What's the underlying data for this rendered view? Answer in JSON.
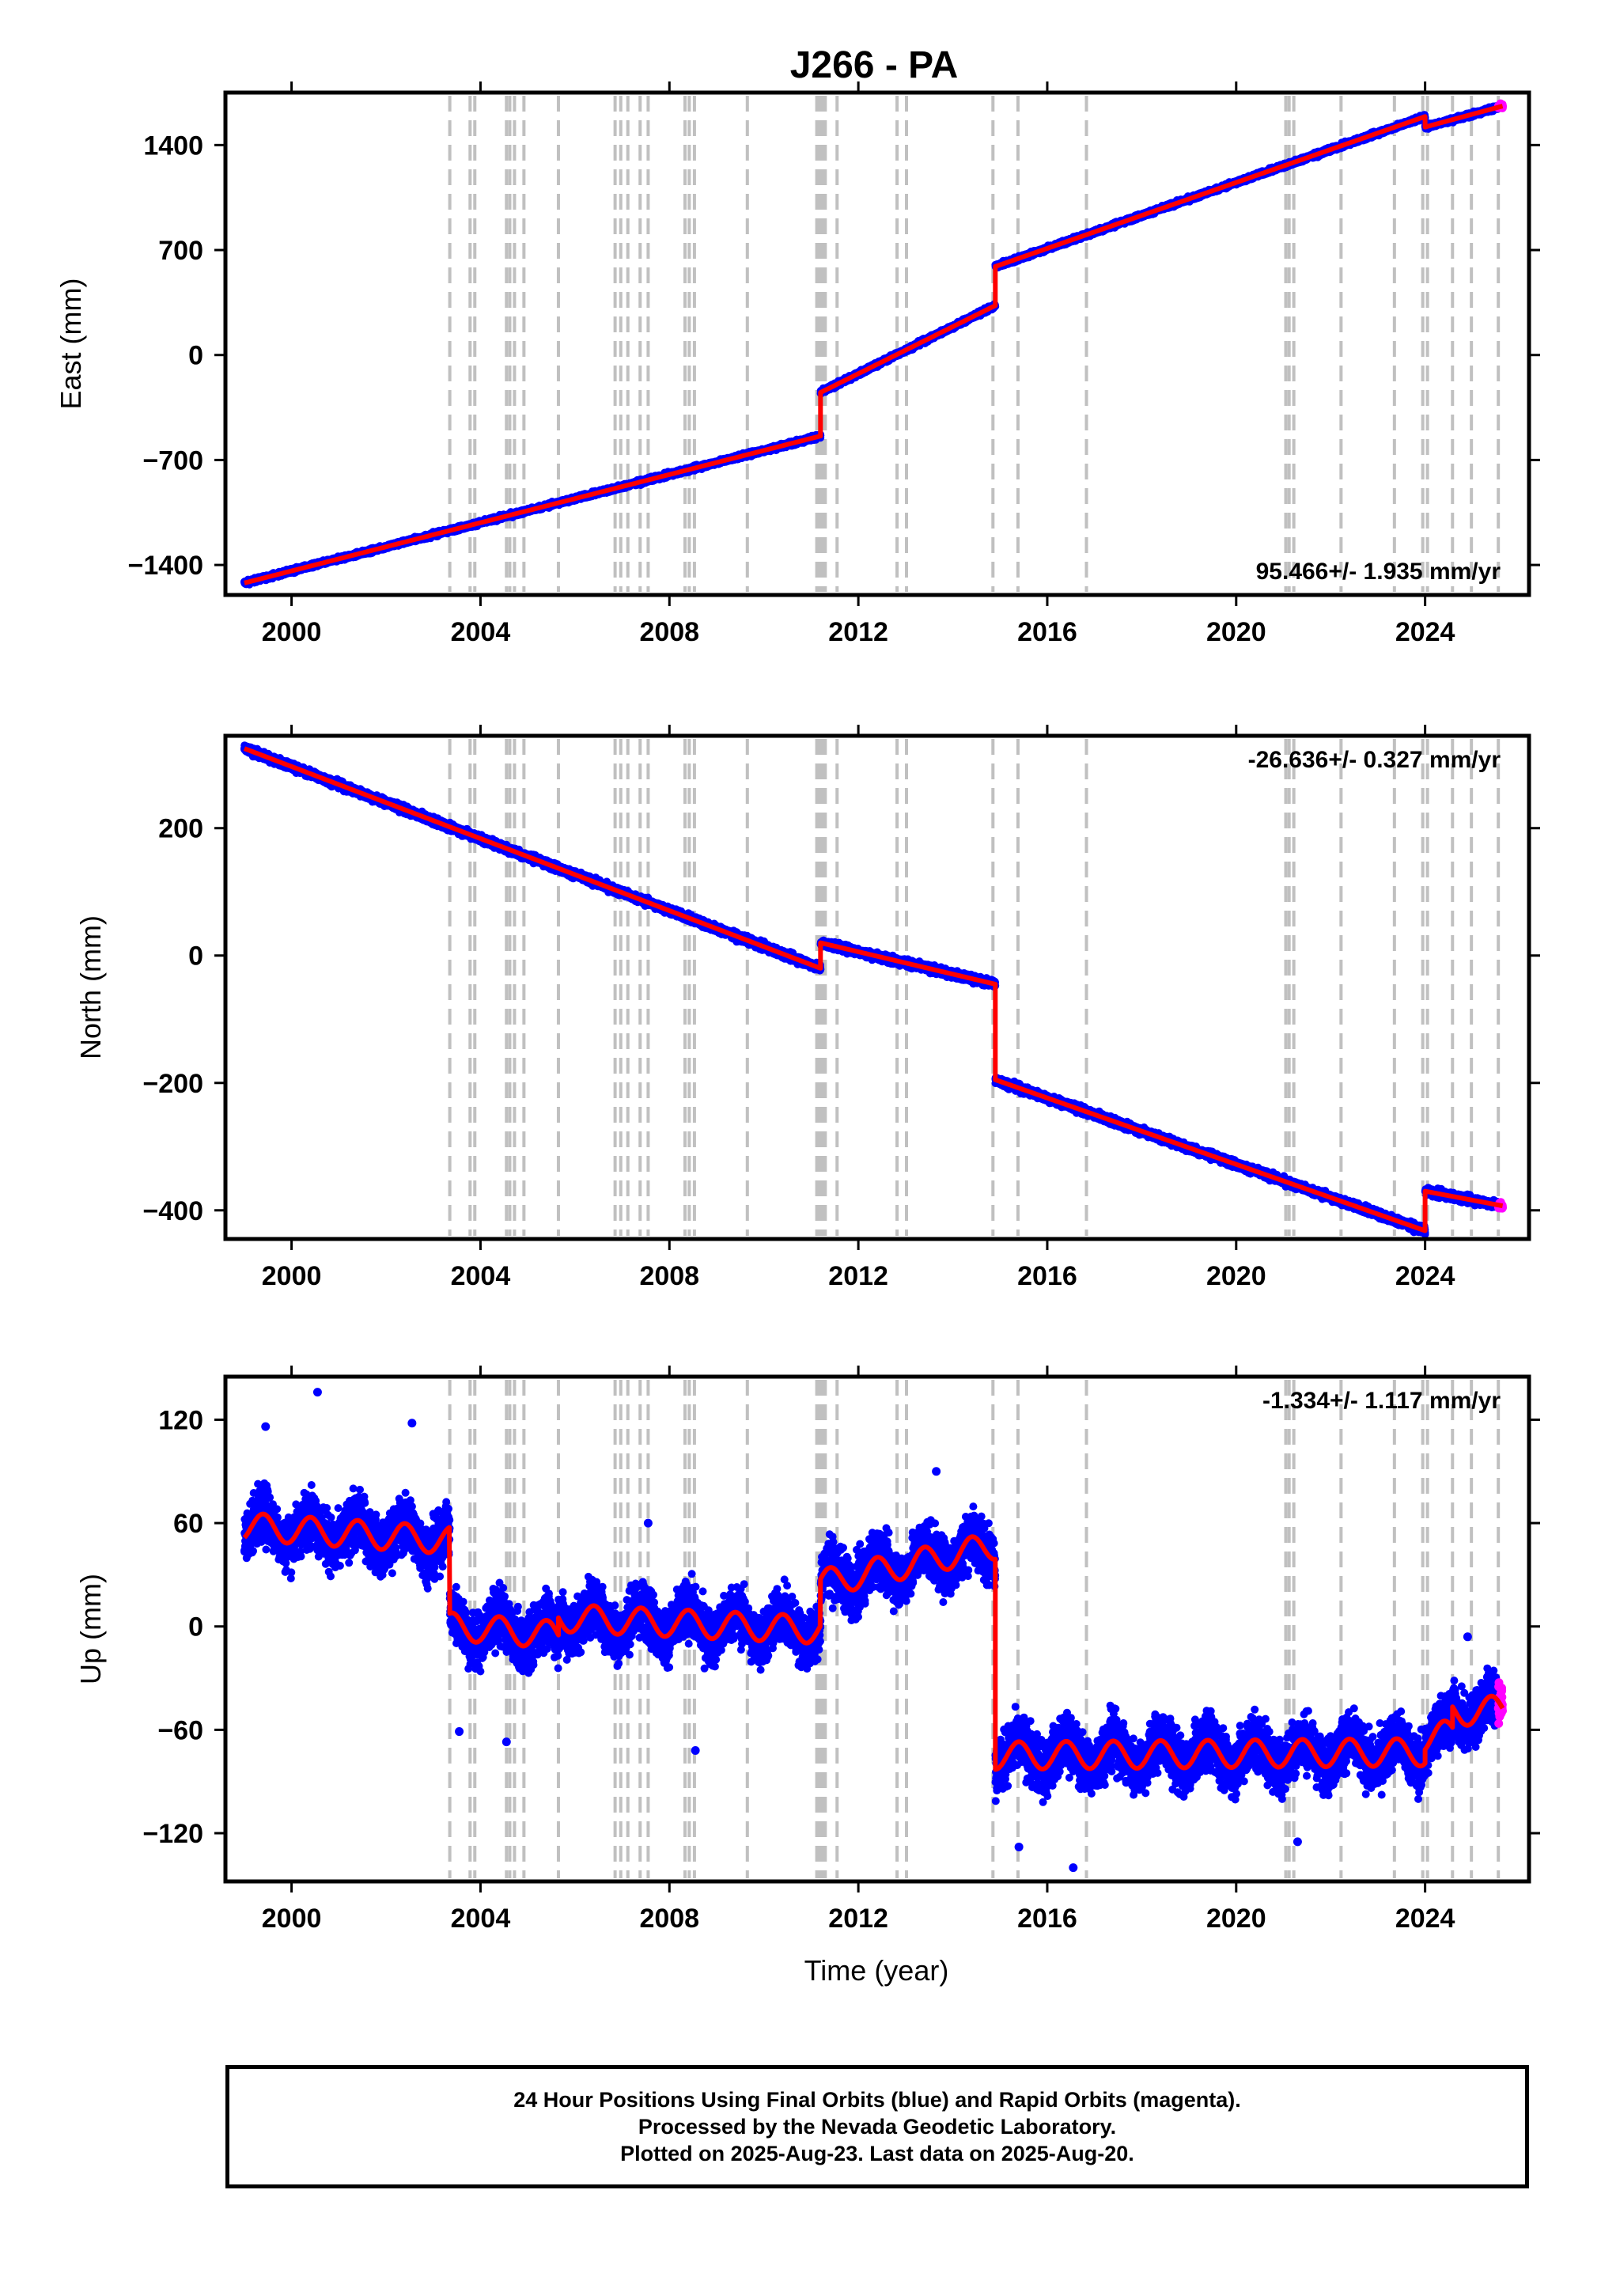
{
  "title": "J266 - PA",
  "colors": {
    "final": "#0000ff",
    "rapid": "#ff00ff",
    "model": "#ff0000",
    "event_line": "#c0c0c0",
    "frame": "#000000"
  },
  "xlabel": "Time (year)",
  "x_range": [
    1998.6,
    2026.2
  ],
  "x_ticks": [
    2000,
    2004,
    2008,
    2012,
    2016,
    2020,
    2024
  ],
  "event_lines": [
    2003.35,
    2003.78,
    2003.88,
    2004.55,
    2004.62,
    2004.72,
    2004.92,
    2005.65,
    2006.85,
    2006.97,
    2007.12,
    2007.38,
    2007.55,
    2008.33,
    2008.42,
    2008.53,
    2009.65,
    2011.12,
    2011.18,
    2011.24,
    2011.3,
    2011.55,
    2012.82,
    2013.02,
    2014.85,
    2015.38,
    2016.83,
    2021.05,
    2021.12,
    2021.22,
    2022.22,
    2023.35,
    2023.95,
    2024.05,
    2024.58,
    2024.98,
    2025.55
  ],
  "chart_data": [
    {
      "type": "scatter",
      "component": "east",
      "ylabel": "East (mm)",
      "ylim": [
        -1600,
        1750
      ],
      "y_ticks": [
        -1400,
        -700,
        0,
        700,
        1400
      ],
      "rate_label": "95.466+/- 1.935 mm/yr",
      "rate_position": "bottom-right",
      "x_start": 1999.0,
      "x_end": 2025.64,
      "rapid_from": 2025.55,
      "noise": 10,
      "seasonal": 0,
      "model_segments": [
        {
          "t0": 1999.0,
          "t1": 2011.2,
          "y0": -1520,
          "y1": -540
        },
        {
          "t0": 2011.2,
          "t1": 2014.9,
          "y0": -250,
          "y1": 330
        },
        {
          "t0": 2014.9,
          "t1": 2024.0,
          "y0": 590,
          "y1": 1590
        },
        {
          "t0": 2024.0,
          "t1": 2025.64,
          "y0": 1520,
          "y1": 1660
        }
      ],
      "outliers": []
    },
    {
      "type": "scatter",
      "component": "north",
      "ylabel": "North (mm)",
      "ylim": [
        -445,
        345
      ],
      "y_ticks": [
        -400,
        -200,
        0,
        200
      ],
      "rate_label": "-26.636+/- 0.327 mm/yr",
      "rate_position": "top-right",
      "x_start": 1999.0,
      "x_end": 2025.64,
      "rapid_from": 2025.55,
      "noise": 4,
      "seasonal": 0,
      "model_segments": [
        {
          "t0": 1999.0,
          "t1": 2011.2,
          "y0": 325,
          "y1": -20
        },
        {
          "t0": 2011.2,
          "t1": 2014.9,
          "y0": 20,
          "y1": -45
        },
        {
          "t0": 2014.9,
          "t1": 2024.0,
          "y0": -195,
          "y1": -432
        },
        {
          "t0": 2024.0,
          "t1": 2025.64,
          "y0": -370,
          "y1": -393
        }
      ],
      "outliers": []
    },
    {
      "type": "scatter",
      "component": "up",
      "ylabel": "Up (mm)",
      "ylim": [
        -148,
        145
      ],
      "y_ticks": [
        -120,
        -60,
        0,
        60,
        120
      ],
      "rate_label": "-1.334+/- 1.117 mm/yr",
      "rate_position": "top-right",
      "x_start": 1999.0,
      "x_end": 2025.64,
      "rapid_from": 2025.55,
      "noise": 11,
      "seasonal": 8,
      "model_segments": [
        {
          "t0": 1999.0,
          "t1": 2003.35,
          "y0": 58,
          "y1": 50
        },
        {
          "t0": 2003.35,
          "t1": 2005.65,
          "y0": 0,
          "y1": -5
        },
        {
          "t0": 2005.65,
          "t1": 2011.2,
          "y0": 5,
          "y1": -2
        },
        {
          "t0": 2011.2,
          "t1": 2014.9,
          "y0": 25,
          "y1": 47
        },
        {
          "t0": 2014.9,
          "t1": 2024.0,
          "y0": -75,
          "y1": -73
        },
        {
          "t0": 2024.0,
          "t1": 2024.58,
          "y0": -65,
          "y1": -62
        },
        {
          "t0": 2024.58,
          "t1": 2025.64,
          "y0": -50,
          "y1": -48
        }
      ],
      "outliers": [
        {
          "x": 2000.55,
          "y": 136
        },
        {
          "x": 2002.55,
          "y": 118
        },
        {
          "x": 1999.45,
          "y": 116
        },
        {
          "x": 2003.55,
          "y": -61
        },
        {
          "x": 2004.55,
          "y": -67
        },
        {
          "x": 2008.55,
          "y": -72
        },
        {
          "x": 2007.55,
          "y": 60
        },
        {
          "x": 2013.65,
          "y": 90
        },
        {
          "x": 2016.55,
          "y": -140
        },
        {
          "x": 2015.4,
          "y": -128
        },
        {
          "x": 2021.3,
          "y": -125
        },
        {
          "x": 2024.9,
          "y": -6
        }
      ]
    }
  ],
  "footer": {
    "line1": "24 Hour Positions Using Final Orbits (blue) and Rapid Orbits (magenta).",
    "line2": "Processed by the Nevada Geodetic Laboratory.",
    "line3": "Plotted on 2025-Aug-23. Last data on 2025-Aug-20."
  }
}
